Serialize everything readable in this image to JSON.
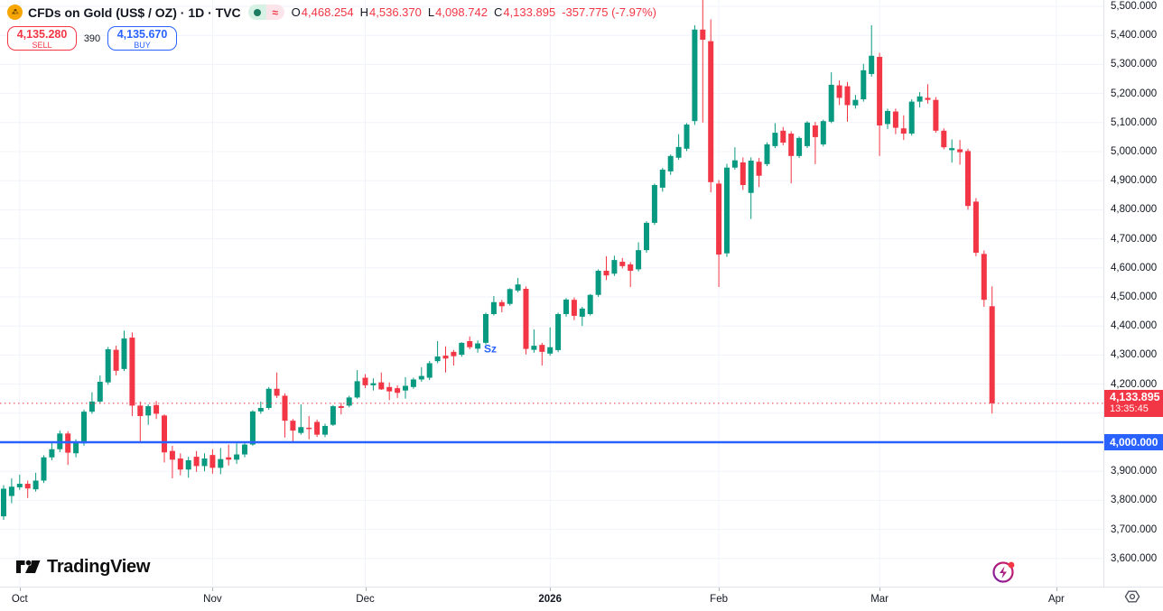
{
  "header": {
    "symbol_title": "CFDs on Gold (US$ / OZ) · 1D · TVC",
    "ohlc": {
      "o_label": "O",
      "o": "4,468.254",
      "h_label": "H",
      "h": "4,536.370",
      "l_label": "L",
      "l": "4,098.742",
      "c_label": "C",
      "c": "4,133.895",
      "change": "-357.775 (-7.97%)"
    },
    "status_delayed_glyph": "≈"
  },
  "trade_panel": {
    "sell_price": "4,135.280",
    "sell_label": "SELL",
    "spread": "390",
    "buy_price": "4,135.670",
    "buy_label": "BUY"
  },
  "price_scale": {
    "labels": [
      {
        "text": "5,500.000",
        "price": 5500
      },
      {
        "text": "5,400.000",
        "price": 5400
      },
      {
        "text": "5,300.000",
        "price": 5300
      },
      {
        "text": "5,200.000",
        "price": 5200
      },
      {
        "text": "5,100.000",
        "price": 5100
      },
      {
        "text": "5,000.000",
        "price": 5000
      },
      {
        "text": "4,900.000",
        "price": 4900
      },
      {
        "text": "4,800.000",
        "price": 4800
      },
      {
        "text": "4,700.000",
        "price": 4700
      },
      {
        "text": "4,600.000",
        "price": 4600
      },
      {
        "text": "4,500.000",
        "price": 4500
      },
      {
        "text": "4,400.000",
        "price": 4400
      },
      {
        "text": "4,300.000",
        "price": 4300
      },
      {
        "text": "4,200.000",
        "price": 4200
      },
      {
        "text": "3,900.000",
        "price": 3900
      },
      {
        "text": "3,800.000",
        "price": 3800
      },
      {
        "text": "3,700.000",
        "price": 3700
      },
      {
        "text": "3,600.000",
        "price": 3600
      }
    ],
    "last_price_label": {
      "price": "4,133.895",
      "countdown": "13:35:45"
    },
    "level_label": "4,000.000"
  },
  "time_scale": {
    "ticks": [
      {
        "label": "Oct",
        "index": 2,
        "bold": false
      },
      {
        "label": "Nov",
        "index": 26,
        "bold": false
      },
      {
        "label": "Dec",
        "index": 45,
        "bold": false
      },
      {
        "label": "2026",
        "index": 68,
        "bold": true
      },
      {
        "label": "Feb",
        "index": 89,
        "bold": false
      },
      {
        "label": "Mar",
        "index": 109,
        "bold": false
      },
      {
        "label": "Apr",
        "index": 131,
        "bold": false
      }
    ]
  },
  "watermark": {
    "text": "TradingView"
  },
  "colors": {
    "up": "#089981",
    "down": "#f23645",
    "accent_blue": "#2962ff",
    "grid": "#f0f3fa",
    "axis_border": "#e0e3eb",
    "text": "#131722",
    "gold_logo": "#f7a600",
    "lightning_purple": "#9c27b0",
    "notification_red": "#f23645"
  },
  "chart_data": {
    "type": "candlestick",
    "title": "CFDs on Gold (US$ / OZ) 1D",
    "ylim": [
      3600,
      5500
    ],
    "grid": true,
    "price_step": 100,
    "horizontal_line": {
      "price": 4000,
      "color": "#2962ff",
      "label": "4,000.000"
    },
    "last_price_line": {
      "price": 4133.895,
      "style": "dotted",
      "color": "#f23645"
    },
    "annotations": [
      {
        "text": "Sz",
        "index": 60,
        "price": 4322,
        "color": "#2962ff"
      }
    ],
    "candles": [
      [
        3745,
        3852,
        3733,
        3840
      ],
      [
        3815,
        3876,
        3790,
        3847
      ],
      [
        3845,
        3888,
        3836,
        3857
      ],
      [
        3857,
        3868,
        3808,
        3841
      ],
      [
        3838,
        3895,
        3830,
        3868
      ],
      [
        3868,
        3955,
        3860,
        3948
      ],
      [
        3948,
        3998,
        3938,
        3976
      ],
      [
        3976,
        4040,
        3966,
        4030
      ],
      [
        4030,
        4038,
        3922,
        3964
      ],
      [
        3962,
        4010,
        3948,
        3999
      ],
      [
        3996,
        4112,
        3988,
        4105
      ],
      [
        4105,
        4172,
        4098,
        4140
      ],
      [
        4140,
        4230,
        4132,
        4208
      ],
      [
        4206,
        4328,
        4198,
        4320
      ],
      [
        4318,
        4332,
        4230,
        4246
      ],
      [
        4252,
        4384,
        4245,
        4357
      ],
      [
        4360,
        4378,
        4090,
        4126
      ],
      [
        4126,
        4140,
        4000,
        4090
      ],
      [
        4092,
        4130,
        4060,
        4124
      ],
      [
        4128,
        4142,
        4080,
        4098
      ],
      [
        4092,
        4096,
        3930,
        3965
      ],
      [
        3970,
        3988,
        3876,
        3940
      ],
      [
        3944,
        3962,
        3886,
        3906
      ],
      [
        3906,
        3950,
        3878,
        3938
      ],
      [
        3950,
        3970,
        3898,
        3918
      ],
      [
        3918,
        3962,
        3900,
        3944
      ],
      [
        3956,
        3976,
        3892,
        3912
      ],
      [
        3912,
        3980,
        3890,
        3942
      ],
      [
        3948,
        3992,
        3920,
        3940
      ],
      [
        3940,
        3996,
        3926,
        3958
      ],
      [
        3958,
        4000,
        3948,
        3992
      ],
      [
        3992,
        4110,
        3988,
        4106
      ],
      [
        4106,
        4140,
        4098,
        4118
      ],
      [
        4118,
        4190,
        4112,
        4184
      ],
      [
        4184,
        4240,
        4152,
        4160
      ],
      [
        4160,
        4168,
        4016,
        4074
      ],
      [
        4074,
        4080,
        4000,
        4040
      ],
      [
        4032,
        4130,
        4026,
        4052
      ],
      [
        4050,
        4090,
        4010,
        4046
      ],
      [
        4070,
        4078,
        4018,
        4026
      ],
      [
        4026,
        4064,
        4018,
        4056
      ],
      [
        4060,
        4128,
        4056,
        4124
      ],
      [
        4124,
        4136,
        4096,
        4118
      ],
      [
        4126,
        4160,
        4120,
        4154
      ],
      [
        4154,
        4248,
        4150,
        4210
      ],
      [
        4222,
        4234,
        4186,
        4196
      ],
      [
        4196,
        4220,
        4178,
        4203
      ],
      [
        4206,
        4240,
        4180,
        4182
      ],
      [
        4190,
        4206,
        4145,
        4175
      ],
      [
        4186,
        4196,
        4152,
        4170
      ],
      [
        4178,
        4224,
        4150,
        4194
      ],
      [
        4190,
        4222,
        4184,
        4216
      ],
      [
        4216,
        4258,
        4208,
        4228
      ],
      [
        4222,
        4280,
        4214,
        4272
      ],
      [
        4279,
        4348,
        4272,
        4295
      ],
      [
        4298,
        4330,
        4240,
        4288
      ],
      [
        4311,
        4318,
        4264,
        4296
      ],
      [
        4301,
        4344,
        4294,
        4342
      ],
      [
        4348,
        4364,
        4320,
        4327
      ],
      [
        4322,
        4350,
        4308,
        4340
      ],
      [
        4342,
        4446,
        4336,
        4441
      ],
      [
        4441,
        4503,
        4436,
        4482
      ],
      [
        4482,
        4490,
        4447,
        4468
      ],
      [
        4476,
        4530,
        4470,
        4527
      ],
      [
        4522,
        4565,
        4516,
        4543
      ],
      [
        4528,
        4536,
        4302,
        4321
      ],
      [
        4318,
        4388,
        4308,
        4332
      ],
      [
        4335,
        4342,
        4264,
        4311
      ],
      [
        4305,
        4395,
        4298,
        4327
      ],
      [
        4317,
        4446,
        4310,
        4441
      ],
      [
        4441,
        4496,
        4432,
        4491
      ],
      [
        4490,
        4498,
        4420,
        4435
      ],
      [
        4432,
        4466,
        4400,
        4460
      ],
      [
        4441,
        4510,
        4436,
        4507
      ],
      [
        4507,
        4595,
        4500,
        4590
      ],
      [
        4590,
        4640,
        4558,
        4574
      ],
      [
        4580,
        4642,
        4572,
        4627
      ],
      [
        4621,
        4634,
        4598,
        4606
      ],
      [
        4612,
        4620,
        4534,
        4590
      ],
      [
        4595,
        4688,
        4588,
        4661
      ],
      [
        4661,
        4760,
        4652,
        4755
      ],
      [
        4755,
        4890,
        4748,
        4885
      ],
      [
        4876,
        4944,
        4862,
        4938
      ],
      [
        4932,
        4990,
        4920,
        4985
      ],
      [
        4979,
        5060,
        4972,
        5016
      ],
      [
        5010,
        5098,
        5002,
        5093
      ],
      [
        5105,
        5435,
        5092,
        5420
      ],
      [
        5420,
        5555,
        5100,
        5385
      ],
      [
        5380,
        5455,
        4860,
        4895
      ],
      [
        4890,
        4902,
        4534,
        4646
      ],
      [
        4650,
        4958,
        4638,
        4945
      ],
      [
        4945,
        5015,
        4938,
        4970
      ],
      [
        4963,
        4980,
        4868,
        4885
      ],
      [
        4858,
        4980,
        4768,
        4969
      ],
      [
        4965,
        4978,
        4878,
        4917
      ],
      [
        4957,
        5032,
        4950,
        5025
      ],
      [
        5019,
        5098,
        5012,
        5065
      ],
      [
        5072,
        5085,
        5022,
        5031
      ],
      [
        5062,
        5070,
        4891,
        4985
      ],
      [
        4985,
        5052,
        4978,
        5047
      ],
      [
        5019,
        5105,
        5012,
        5100
      ],
      [
        5090,
        5102,
        4957,
        5050
      ],
      [
        5025,
        5110,
        5018,
        5105
      ],
      [
        5103,
        5273,
        5098,
        5230
      ],
      [
        5228,
        5245,
        5160,
        5185
      ],
      [
        5225,
        5240,
        5103,
        5160
      ],
      [
        5159,
        5195,
        5148,
        5178
      ],
      [
        5180,
        5302,
        5172,
        5280
      ],
      [
        5267,
        5435,
        5258,
        5330
      ],
      [
        5326,
        5340,
        4985,
        5090
      ],
      [
        5095,
        5148,
        5078,
        5140
      ],
      [
        5138,
        5148,
        5060,
        5082
      ],
      [
        5080,
        5125,
        5040,
        5062
      ],
      [
        5062,
        5180,
        5055,
        5172
      ],
      [
        5172,
        5205,
        5152,
        5190
      ],
      [
        5185,
        5232,
        5165,
        5178
      ],
      [
        5178,
        5188,
        5065,
        5072
      ],
      [
        5072,
        5080,
        5008,
        5015
      ],
      [
        5005,
        5042,
        4962,
        5012
      ],
      [
        5008,
        5040,
        4955,
        4998
      ],
      [
        5002,
        5010,
        4800,
        4813
      ],
      [
        4828,
        4840,
        4640,
        4652
      ],
      [
        4648,
        4660,
        4466,
        4490
      ],
      [
        4468,
        4536.37,
        4098.742,
        4133.895
      ]
    ]
  }
}
